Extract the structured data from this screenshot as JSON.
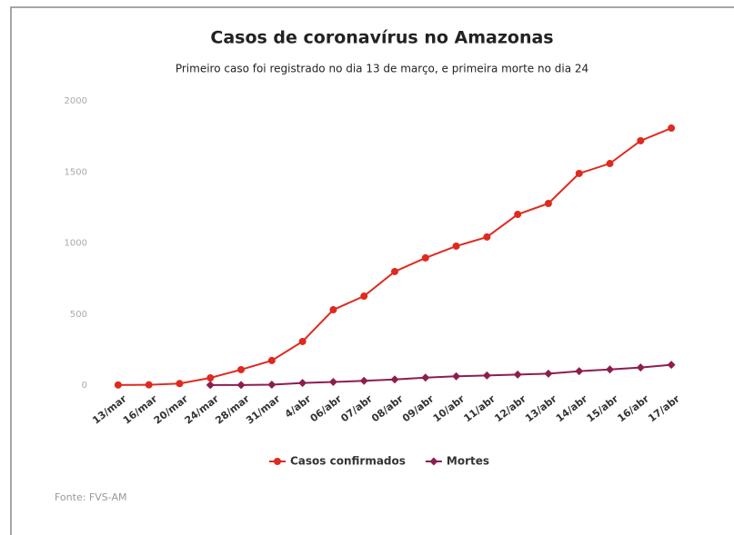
{
  "chart_data": {
    "type": "line",
    "title": "Casos de coronavírus no Amazonas",
    "subtitle": "Primeiro caso foi registrado no dia 13 de março, e primeira morte no dia 24",
    "source": "Fonte: FVS-AM",
    "categories": [
      "13/mar",
      "16/mar",
      "20/mar",
      "24/mar",
      "28/mar",
      "31/mar",
      "4/abr",
      "06/abr",
      "07/abr",
      "08/abr",
      "09/abr",
      "10/abr",
      "11/abr",
      "12/abr",
      "13/abr",
      "14/abr",
      "15/abr",
      "16/abr",
      "17/abr"
    ],
    "series": [
      {
        "name": "Casos confirmados",
        "color": "#e0291f",
        "marker": "circle",
        "values": [
          1,
          2,
          11,
          51,
          109,
          173,
          307,
          530,
          626,
          799,
          895,
          978,
          1042,
          1201,
          1278,
          1489,
          1559,
          1719,
          1808
        ]
      },
      {
        "name": "Mortes",
        "color": "#8e1d4e",
        "marker": "diamond",
        "values": [
          null,
          null,
          null,
          1,
          1,
          3,
          15,
          22,
          30,
          40,
          53,
          62,
          68,
          74,
          81,
          98,
          110,
          124,
          143
        ]
      }
    ],
    "ylim": [
      0,
      2000
    ],
    "yticks": [
      0,
      500,
      1000,
      1500,
      2000
    ],
    "grid": false
  }
}
